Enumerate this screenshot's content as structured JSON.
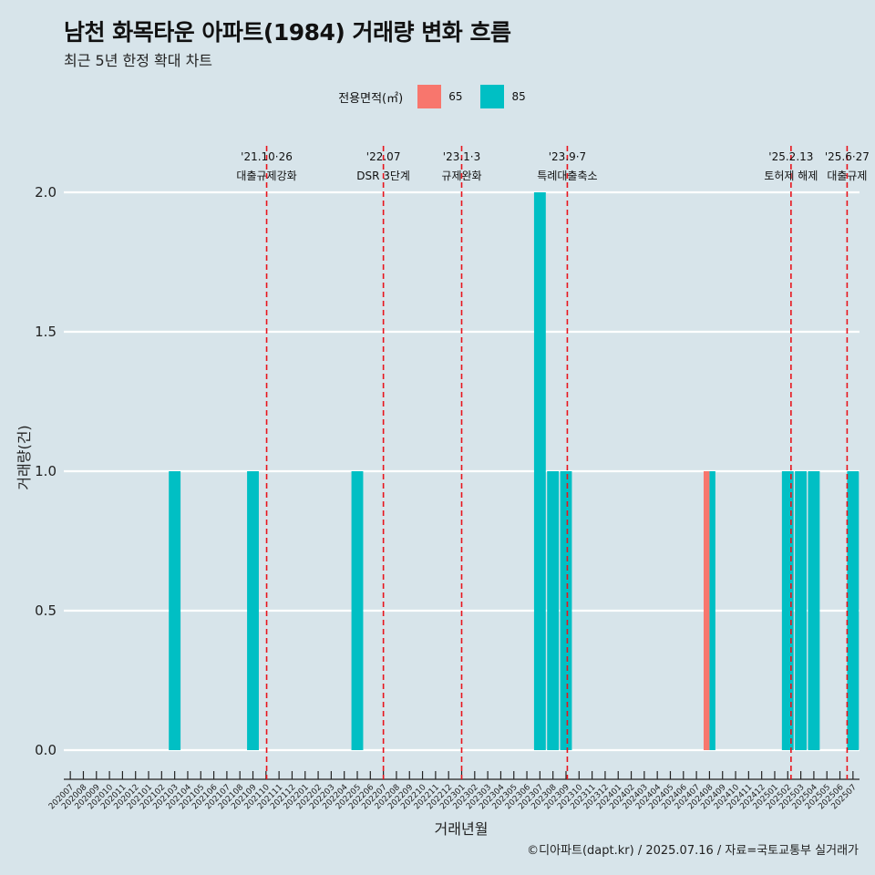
{
  "title": "남천 화목타운 아파트(1984) 거래량 변화 흐름",
  "subtitle": "최근 5년 한정 확대 차트",
  "legend": {
    "title": "전용면적(㎡)",
    "items": [
      {
        "label": "65",
        "color": "#f8766d"
      },
      {
        "label": "85",
        "color": "#00bfc4"
      }
    ]
  },
  "caption": "©디아파트(dapt.kr) / 2025.07.16 / 자료=국토교통부 실거래가",
  "chart_data": {
    "type": "bar",
    "xlabel": "거래년월",
    "ylabel": "거래량(건)",
    "ylim": [
      0,
      2
    ],
    "yticks": [
      "0.0",
      "0.5",
      "1.0",
      "1.5",
      "2.0"
    ],
    "grid": true,
    "legend_position": "top",
    "categories": [
      "202007",
      "202008",
      "202009",
      "202010",
      "202011",
      "202012",
      "202101",
      "202102",
      "202103",
      "202104",
      "202105",
      "202106",
      "202107",
      "202108",
      "202109",
      "202110",
      "202111",
      "202112",
      "202201",
      "202202",
      "202203",
      "202204",
      "202205",
      "202206",
      "202207",
      "202208",
      "202209",
      "202210",
      "202211",
      "202212",
      "202301",
      "202302",
      "202303",
      "202304",
      "202305",
      "202306",
      "202307",
      "202308",
      "202309",
      "202310",
      "202311",
      "202312",
      "202401",
      "202402",
      "202403",
      "202404",
      "202405",
      "202406",
      "202407",
      "202408",
      "202409",
      "202410",
      "202411",
      "202412",
      "202501",
      "202502",
      "202503",
      "202504",
      "202505",
      "202506",
      "202507"
    ],
    "bars": [
      {
        "x": "202103",
        "size": "85",
        "value": 1
      },
      {
        "x": "202109",
        "size": "85",
        "value": 1
      },
      {
        "x": "202205",
        "size": "85",
        "value": 1
      },
      {
        "x": "202307",
        "size": "85",
        "value": 2
      },
      {
        "x": "202308",
        "size": "85",
        "value": 1
      },
      {
        "x": "202309",
        "size": "85",
        "value": 1
      },
      {
        "x": "202408",
        "size": "65",
        "value": 1
      },
      {
        "x": "202408",
        "size": "85",
        "value": 1
      },
      {
        "x": "202502",
        "size": "85",
        "value": 1
      },
      {
        "x": "202503",
        "size": "85",
        "value": 1
      },
      {
        "x": "202504",
        "size": "85",
        "value": 1
      },
      {
        "x": "202507",
        "size": "85",
        "value": 1
      }
    ],
    "events": [
      {
        "date": "'21.10·26",
        "label": "대출규제강화",
        "x": "202110",
        "offset": 0.05
      },
      {
        "date": "'22.07",
        "label": "DSR 3단계",
        "x": "202207",
        "offset": 0
      },
      {
        "date": "'23.1·3",
        "label": "규제완화",
        "x": "202301",
        "offset": 0
      },
      {
        "date": "'23.9·7",
        "label": "특례대출축소",
        "x": "202309",
        "offset": 0.1
      },
      {
        "date": "'25.2.13",
        "label": "토허제 해제",
        "x": "202502",
        "offset": 0.25
      },
      {
        "date": "'25.6·27",
        "label": "대출규제",
        "x": "202506",
        "offset": 0.55
      }
    ]
  }
}
